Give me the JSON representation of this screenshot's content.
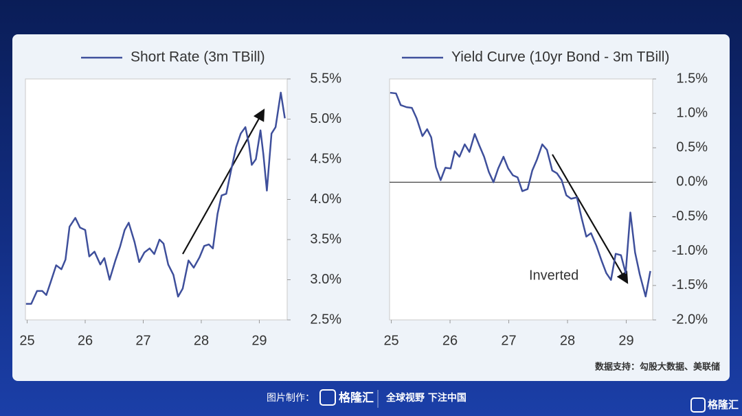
{
  "chart_data": [
    {
      "type": "line",
      "legend": "top",
      "line_width": 2.5,
      "xlim": [
        24.97,
        29.48
      ],
      "xticks": [
        25,
        26,
        27,
        28,
        29
      ],
      "ylim": [
        2.5,
        5.5
      ],
      "yticks": [
        {
          "value": 2.5,
          "label": "2.5%"
        },
        {
          "value": 3.0,
          "label": "3.0%"
        },
        {
          "value": 3.5,
          "label": "3.5%"
        },
        {
          "value": 4.0,
          "label": "4.0%"
        },
        {
          "value": 4.5,
          "label": "4.5%"
        },
        {
          "value": 5.0,
          "label": "5.0%"
        },
        {
          "value": 5.5,
          "label": "5.5%"
        }
      ],
      "series": [
        {
          "name": "Short Rate (3m TBill)",
          "color": "#3e4f9b",
          "x": [
            24.98,
            25.07,
            25.17,
            25.26,
            25.33,
            25.4,
            25.5,
            25.59,
            25.66,
            25.73,
            25.83,
            25.91,
            26.0,
            26.07,
            26.16,
            26.26,
            26.33,
            26.42,
            26.52,
            26.6,
            26.68,
            26.75,
            26.85,
            26.93,
            27.02,
            27.11,
            27.19,
            27.28,
            27.35,
            27.43,
            27.52,
            27.6,
            27.68,
            27.78,
            27.87,
            27.97,
            28.05,
            28.13,
            28.2,
            28.28,
            28.35,
            28.43,
            28.51,
            28.6,
            28.68,
            28.76,
            28.82,
            28.87,
            28.94,
            29.02,
            29.07,
            29.13,
            29.21,
            29.28,
            29.37,
            29.44
          ],
          "values": [
            2.7,
            2.7,
            2.86,
            2.86,
            2.81,
            2.96,
            3.18,
            3.13,
            3.25,
            3.66,
            3.77,
            3.65,
            3.62,
            3.29,
            3.35,
            3.19,
            3.27,
            3.0,
            3.24,
            3.41,
            3.62,
            3.71,
            3.47,
            3.22,
            3.34,
            3.39,
            3.32,
            3.5,
            3.45,
            3.19,
            3.06,
            2.79,
            2.89,
            3.24,
            3.15,
            3.28,
            3.42,
            3.44,
            3.39,
            3.82,
            4.05,
            4.07,
            4.35,
            4.65,
            4.82,
            4.9,
            4.69,
            4.43,
            4.5,
            4.86,
            4.56,
            4.11,
            4.82,
            4.9,
            5.33,
            5.01
          ]
        }
      ]
    },
    {
      "type": "line",
      "legend": "top",
      "line_width": 2.5,
      "reference_line": 0,
      "xlim": [
        24.97,
        29.45
      ],
      "xticks": [
        25,
        26,
        27,
        28,
        29
      ],
      "ylim": [
        -2.0,
        1.5
      ],
      "yticks": [
        {
          "value": -2.0,
          "label": "-2.0%"
        },
        {
          "value": -1.5,
          "label": "-1.5%"
        },
        {
          "value": -1.0,
          "label": "-1.0%"
        },
        {
          "value": -0.5,
          "label": "-0.5%"
        },
        {
          "value": 0.0,
          "label": "0.0%"
        },
        {
          "value": 0.5,
          "label": "0.5%"
        },
        {
          "value": 1.0,
          "label": "1.0%"
        },
        {
          "value": 1.5,
          "label": "1.5%"
        }
      ],
      "annotations": [
        {
          "text": "Inverted"
        }
      ],
      "series": [
        {
          "name": "Yield Curve (10yr Bond - 3m TBill)",
          "color": "#3e4f9b",
          "x": [
            24.98,
            25.08,
            25.16,
            25.26,
            25.35,
            25.43,
            25.53,
            25.61,
            25.68,
            25.76,
            25.84,
            25.92,
            26.01,
            26.08,
            26.16,
            26.25,
            26.33,
            26.42,
            26.5,
            26.58,
            26.66,
            26.74,
            26.82,
            26.91,
            26.99,
            27.07,
            27.15,
            27.23,
            27.32,
            27.4,
            27.48,
            27.57,
            27.65,
            27.74,
            27.82,
            27.9,
            27.98,
            28.06,
            28.16,
            28.24,
            28.32,
            28.4,
            28.49,
            28.58,
            28.66,
            28.74,
            28.82,
            28.91,
            28.99,
            29.07,
            29.15,
            29.23,
            29.33,
            29.41
          ],
          "values": [
            1.3,
            1.29,
            1.12,
            1.09,
            1.08,
            0.93,
            0.67,
            0.77,
            0.65,
            0.22,
            0.03,
            0.21,
            0.2,
            0.45,
            0.37,
            0.55,
            0.44,
            0.7,
            0.53,
            0.37,
            0.15,
            0.0,
            0.2,
            0.37,
            0.2,
            0.1,
            0.07,
            -0.13,
            -0.1,
            0.17,
            0.33,
            0.55,
            0.47,
            0.17,
            0.13,
            0.03,
            -0.19,
            -0.24,
            -0.22,
            -0.52,
            -0.79,
            -0.74,
            -0.92,
            -1.14,
            -1.32,
            -1.42,
            -1.04,
            -1.06,
            -1.32,
            -0.44,
            -1.02,
            -1.34,
            -1.66,
            -1.29
          ]
        }
      ]
    }
  ],
  "source": "数据支持：勾股大数据、美联储",
  "footer": {
    "made_by": "图片制作：",
    "brand": "格隆汇",
    "slogan": "全球视野 下注中国",
    "corner_brand": "格隆汇"
  }
}
